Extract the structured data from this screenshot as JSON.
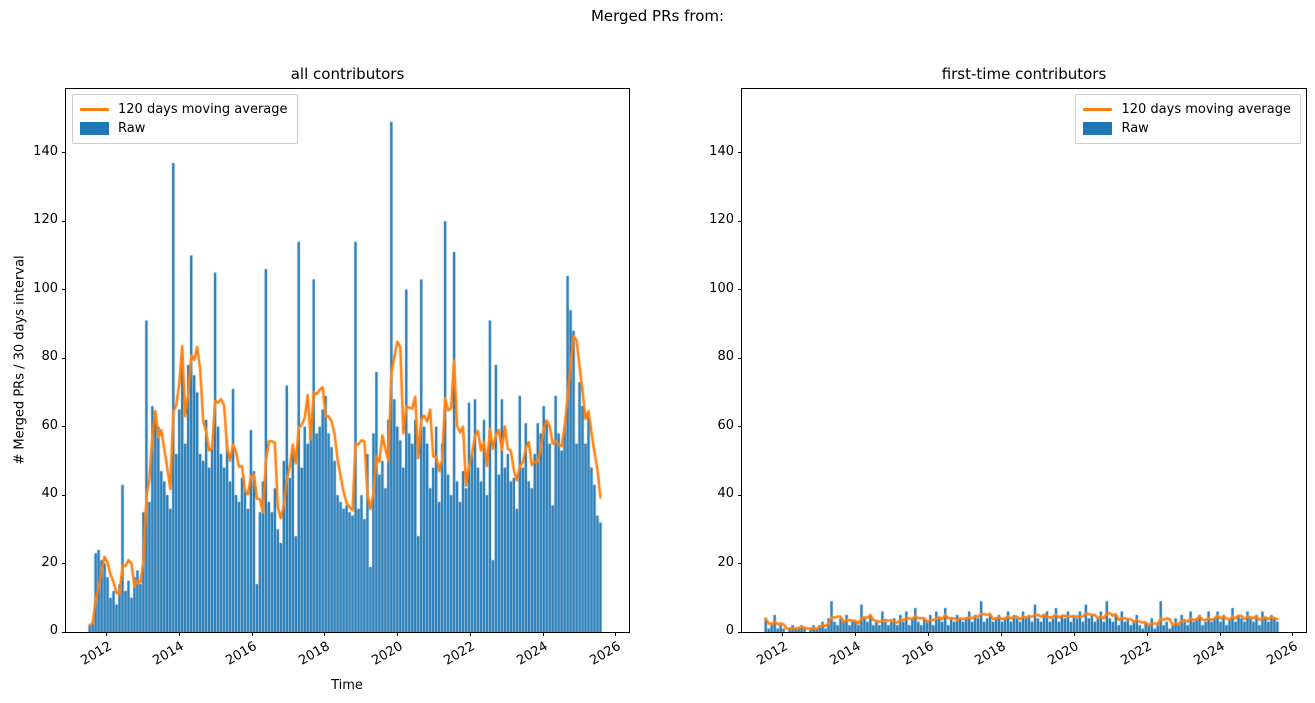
{
  "figure": {
    "title": "Merged PRs from:"
  },
  "colors": {
    "raw_bar": "#1f77b4",
    "moving_average_line": "#ff7f0e",
    "text": "#000000",
    "spine": "#000000",
    "legend_border": "#cccccc",
    "background": "#ffffff"
  },
  "legend": {
    "entries": [
      {
        "label": "120 days moving average",
        "swatch": "line"
      },
      {
        "label": "Raw",
        "swatch": "patch"
      }
    ]
  },
  "chart_data": [
    {
      "type": "bar",
      "title": "all contributors",
      "xlabel": "Time",
      "ylabel": "# Merged PRs / 30 days interval",
      "legend_position": "upper left",
      "grid": false,
      "xlim": [
        2010.88,
        2026.36
      ],
      "ylim": [
        0,
        158.6
      ],
      "xticks": [
        2012,
        2014,
        2016,
        2018,
        2020,
        2022,
        2024,
        2026
      ],
      "xtick_labels": [
        "2012",
        "2014",
        "2016",
        "2018",
        "2020",
        "2022",
        "2024",
        "2026"
      ],
      "yticks": [
        0,
        20,
        40,
        60,
        80,
        100,
        120,
        140
      ],
      "ytick_labels": [
        "0",
        "20",
        "40",
        "60",
        "80",
        "100",
        "120",
        "140"
      ],
      "x_start_year": 2011.53,
      "x_step_days": 30,
      "series": [
        {
          "name": "120 days moving average",
          "type": "line",
          "color": "#ff7f0e",
          "window_days": 120,
          "window_bins": 4,
          "derived_from": "Raw"
        },
        {
          "name": "Raw",
          "type": "bar",
          "color": "#1f77b4",
          "values": [
            2,
            3,
            23,
            24,
            21,
            20,
            16,
            10,
            12,
            8,
            14,
            43,
            12,
            15,
            10,
            16,
            18,
            14,
            35,
            91,
            38,
            66,
            63,
            60,
            47,
            44,
            40,
            36,
            137,
            52,
            65,
            80,
            55,
            78,
            110,
            75,
            70,
            52,
            50,
            62,
            48,
            55,
            105,
            60,
            52,
            48,
            56,
            44,
            71,
            40,
            38,
            45,
            42,
            36,
            59,
            47,
            14,
            35,
            44,
            106,
            38,
            35,
            42,
            30,
            26,
            50,
            72,
            45,
            52,
            28,
            114,
            48,
            60,
            55,
            62,
            103,
            58,
            60,
            65,
            69,
            58,
            54,
            50,
            40,
            38,
            36,
            37,
            35,
            34,
            114,
            36,
            40,
            33,
            52,
            19,
            58,
            76,
            46,
            50,
            42,
            62,
            149,
            68,
            60,
            56,
            48,
            100,
            58,
            55,
            62,
            28,
            103,
            60,
            55,
            42,
            48,
            60,
            38,
            55,
            120,
            46,
            40,
            111,
            44,
            38,
            47,
            42,
            67,
            52,
            68,
            48,
            44,
            62,
            40,
            91,
            21,
            78,
            46,
            68,
            48,
            52,
            44,
            45,
            36,
            69,
            48,
            61,
            44,
            42,
            52,
            61,
            58,
            66,
            62,
            55,
            37,
            69,
            58,
            53,
            60,
            104,
            94,
            88,
            55,
            73,
            66,
            55,
            64,
            48,
            43,
            34,
            32
          ]
        }
      ]
    },
    {
      "type": "bar",
      "title": "first-time contributors",
      "xlabel": "",
      "ylabel": "",
      "legend_position": "upper right",
      "grid": false,
      "xlim": [
        2010.88,
        2026.36
      ],
      "ylim": [
        0,
        158.6
      ],
      "xticks": [
        2012,
        2014,
        2016,
        2018,
        2020,
        2022,
        2024,
        2026
      ],
      "xtick_labels": [
        "2012",
        "2014",
        "2016",
        "2018",
        "2020",
        "2022",
        "2024",
        "2026"
      ],
      "yticks": [
        0,
        20,
        40,
        60,
        80,
        100,
        120,
        140
      ],
      "ytick_labels": [
        "0",
        "20",
        "40",
        "60",
        "80",
        "100",
        "120",
        "140"
      ],
      "x_start_year": 2011.53,
      "x_step_days": 30,
      "series": [
        {
          "name": "120 days moving average",
          "type": "line",
          "color": "#ff7f0e",
          "window_days": 120,
          "window_bins": 4,
          "derived_from": "Raw"
        },
        {
          "name": "Raw",
          "type": "bar",
          "color": "#1f77b4",
          "values": [
            4,
            1,
            2,
            5,
            1,
            2,
            1,
            0,
            1,
            2,
            1,
            1,
            2,
            1,
            0,
            1,
            2,
            1,
            2,
            3,
            1,
            4,
            9,
            3,
            2,
            4,
            3,
            5,
            2,
            3,
            3,
            2,
            8,
            4,
            3,
            5,
            2,
            3,
            2,
            6,
            3,
            2,
            3,
            4,
            2,
            5,
            3,
            6,
            2,
            4,
            7,
            3,
            2,
            4,
            3,
            5,
            2,
            6,
            4,
            3,
            7,
            2,
            4,
            3,
            5,
            4,
            3,
            4,
            6,
            3,
            5,
            4,
            9,
            3,
            4,
            5,
            3,
            4,
            5,
            3,
            4,
            6,
            3,
            5,
            4,
            3,
            6,
            4,
            5,
            3,
            8,
            4,
            3,
            5,
            6,
            3,
            4,
            7,
            3,
            5,
            4,
            6,
            3,
            5,
            4,
            6,
            3,
            8,
            4,
            5,
            3,
            4,
            6,
            3,
            9,
            4,
            3,
            5,
            2,
            6,
            3,
            4,
            2,
            3,
            5,
            2,
            1,
            3,
            2,
            4,
            1,
            2,
            9,
            2,
            3,
            1,
            2,
            4,
            2,
            5,
            3,
            2,
            6,
            3,
            4,
            5,
            2,
            3,
            6,
            3,
            4,
            6,
            3,
            5,
            2,
            4,
            7,
            3,
            5,
            4,
            3,
            6,
            4,
            3,
            5,
            2,
            6,
            4,
            3,
            5,
            4,
            3
          ]
        }
      ]
    }
  ]
}
